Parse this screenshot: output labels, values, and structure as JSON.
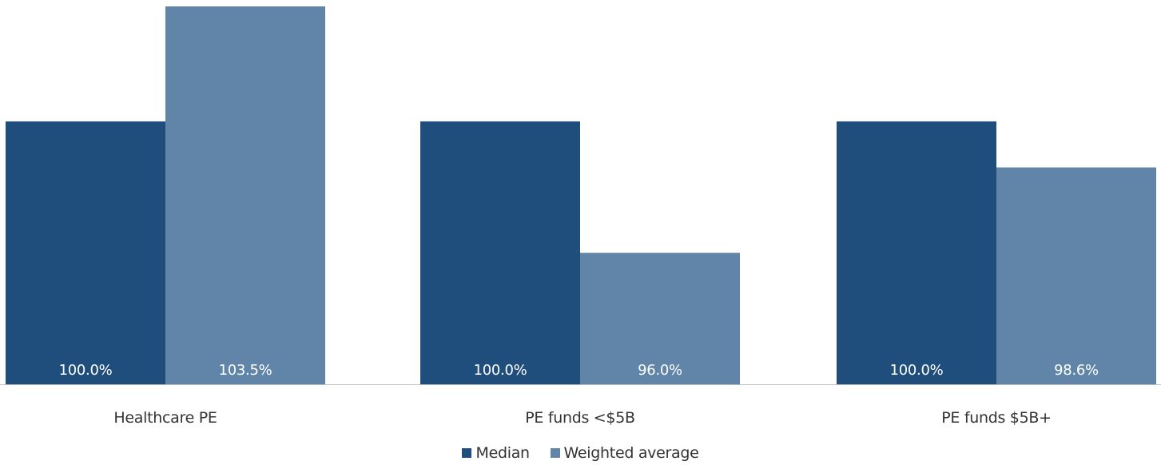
{
  "chart_data": {
    "type": "bar",
    "categories": [
      "Healthcare PE",
      "PE funds <$5B",
      "PE funds $5B+"
    ],
    "series": [
      {
        "name": "Median",
        "color": "#1f4e7c",
        "values": [
          100.0,
          100.0,
          100.0
        ],
        "labels": [
          "100.0%",
          "100.0%",
          "100.0%"
        ]
      },
      {
        "name": "Weighted average",
        "color": "#6085a8",
        "values": [
          103.5,
          96.0,
          98.6
        ],
        "labels": [
          "103.5%",
          "96.0%",
          "98.6%"
        ]
      }
    ],
    "ylim": [
      92.0,
      103.5
    ],
    "grid": false,
    "legend_position": "bottom",
    "axis_color": "#bfbfbf",
    "label_color": "#ffffff",
    "category_label_color": "#333333"
  }
}
